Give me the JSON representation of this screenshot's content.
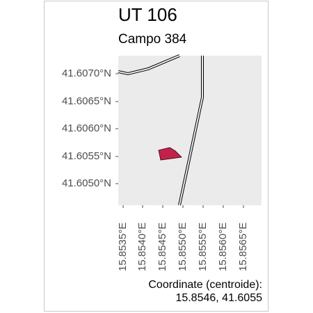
{
  "title": "UT 106",
  "subtitle": "Campo 384",
  "colors": {
    "panel_background": "#ebebeb",
    "parcel_fill": "#c2224a",
    "road_stroke": "#000000",
    "axis_text": "#4d4d4d"
  },
  "axes": {
    "lat_ticks": [
      "41.6070°N",
      "41.6065°N",
      "41.6060°N",
      "41.6055°N",
      "41.6050°N"
    ],
    "lon_ticks": [
      "15.8535°E",
      "15.8540°E",
      "15.8545°E",
      "15.8550°E",
      "15.8555°E",
      "15.8560°E",
      "15.8565°E"
    ]
  },
  "caption": {
    "line1": "Coordinate (centroide):",
    "line2": "15.8546, 41.6055"
  }
}
